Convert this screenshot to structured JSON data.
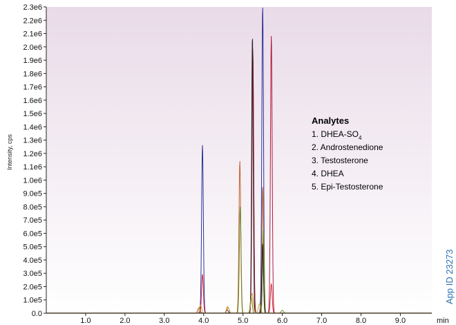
{
  "chart_data": {
    "type": "line",
    "title": "",
    "xlabel": "min",
    "ylabel": "Intensity, cps",
    "xlim": [
      0,
      9.8
    ],
    "ylim": [
      0,
      2300000
    ],
    "x_ticks": [
      "1.0",
      "2.0",
      "3.0",
      "4.0",
      "5.0",
      "6.0",
      "7.0",
      "8.0",
      "9.0"
    ],
    "x_tick_values": [
      1,
      2,
      3,
      4,
      5,
      6,
      7,
      8,
      9
    ],
    "y_ticks": [
      "0.0",
      "1.0e5",
      "2.0e5",
      "3.0e5",
      "4.0e5",
      "5.0e5",
      "6.0e5",
      "7.0e5",
      "8.0e5",
      "9.0e5",
      "1.0e6",
      "1.1e6",
      "1.2e6",
      "1.3e6",
      "1.4e6",
      "1.5e6",
      "1.6e6",
      "1.7e6",
      "1.8e6",
      "1.9e6",
      "2.0e6",
      "2.1e6",
      "2.2e6",
      "2.3e6"
    ],
    "y_tick_values": [
      0,
      100000,
      200000,
      300000,
      400000,
      500000,
      600000,
      700000,
      800000,
      900000,
      1000000,
      1100000,
      1200000,
      1300000,
      1400000,
      1500000,
      1600000,
      1700000,
      1800000,
      1900000,
      2000000,
      2100000,
      2200000,
      2300000
    ],
    "grid": false,
    "background_gradient": [
      "#e9dbe8",
      "#ffffff"
    ],
    "series": [
      {
        "color": "#2b2f9a",
        "peaks": [
          [
            3.97,
            1260000,
            0.022
          ],
          [
            5.5,
            2300000,
            0.022
          ],
          [
            4.6,
            20000,
            0.03
          ]
        ]
      },
      {
        "color": "#d62a3a",
        "peaks": [
          [
            3.97,
            290000,
            0.022
          ],
          [
            5.25,
            1980000,
            0.022
          ],
          [
            5.72,
            220000,
            0.022
          ]
        ]
      },
      {
        "color": "#b0183e",
        "peaks": [
          [
            5.25,
            1950000,
            0.022
          ],
          [
            5.72,
            2080000,
            0.022
          ]
        ]
      },
      {
        "color": "#c0622a",
        "peaks": [
          [
            4.92,
            1140000,
            0.022
          ],
          [
            5.5,
            950000,
            0.02
          ],
          [
            4.62,
            40000,
            0.03
          ],
          [
            3.88,
            40000,
            0.03
          ]
        ]
      },
      {
        "color": "#6b8a2a",
        "peaks": [
          [
            4.93,
            800000,
            0.022
          ],
          [
            5.21,
            120000,
            0.025
          ],
          [
            5.52,
            630000,
            0.02
          ],
          [
            6.0,
            20000,
            0.03
          ]
        ]
      },
      {
        "color": "#222222",
        "peaks": [
          [
            5.24,
            2080000,
            0.02
          ],
          [
            5.5,
            520000,
            0.02
          ]
        ]
      },
      {
        "color": "#c8a23a",
        "peaks": [
          [
            3.92,
            60000,
            0.03
          ],
          [
            4.61,
            50000,
            0.03
          ],
          [
            5.23,
            150000,
            0.03
          ],
          [
            5.42,
            70000,
            0.03
          ]
        ]
      }
    ]
  },
  "legend": {
    "title": "Analytes",
    "items": [
      {
        "main": "1. DHEA-SO",
        "sub": "4"
      },
      {
        "main": "2. Androstenedione",
        "sub": ""
      },
      {
        "main": "3. Testosterone",
        "sub": ""
      },
      {
        "main": "4. DHEA",
        "sub": ""
      },
      {
        "main": "5. Epi-Testosterone",
        "sub": ""
      }
    ]
  },
  "app_id": {
    "text": "App ID 23273",
    "color": "#2a6fb0"
  }
}
